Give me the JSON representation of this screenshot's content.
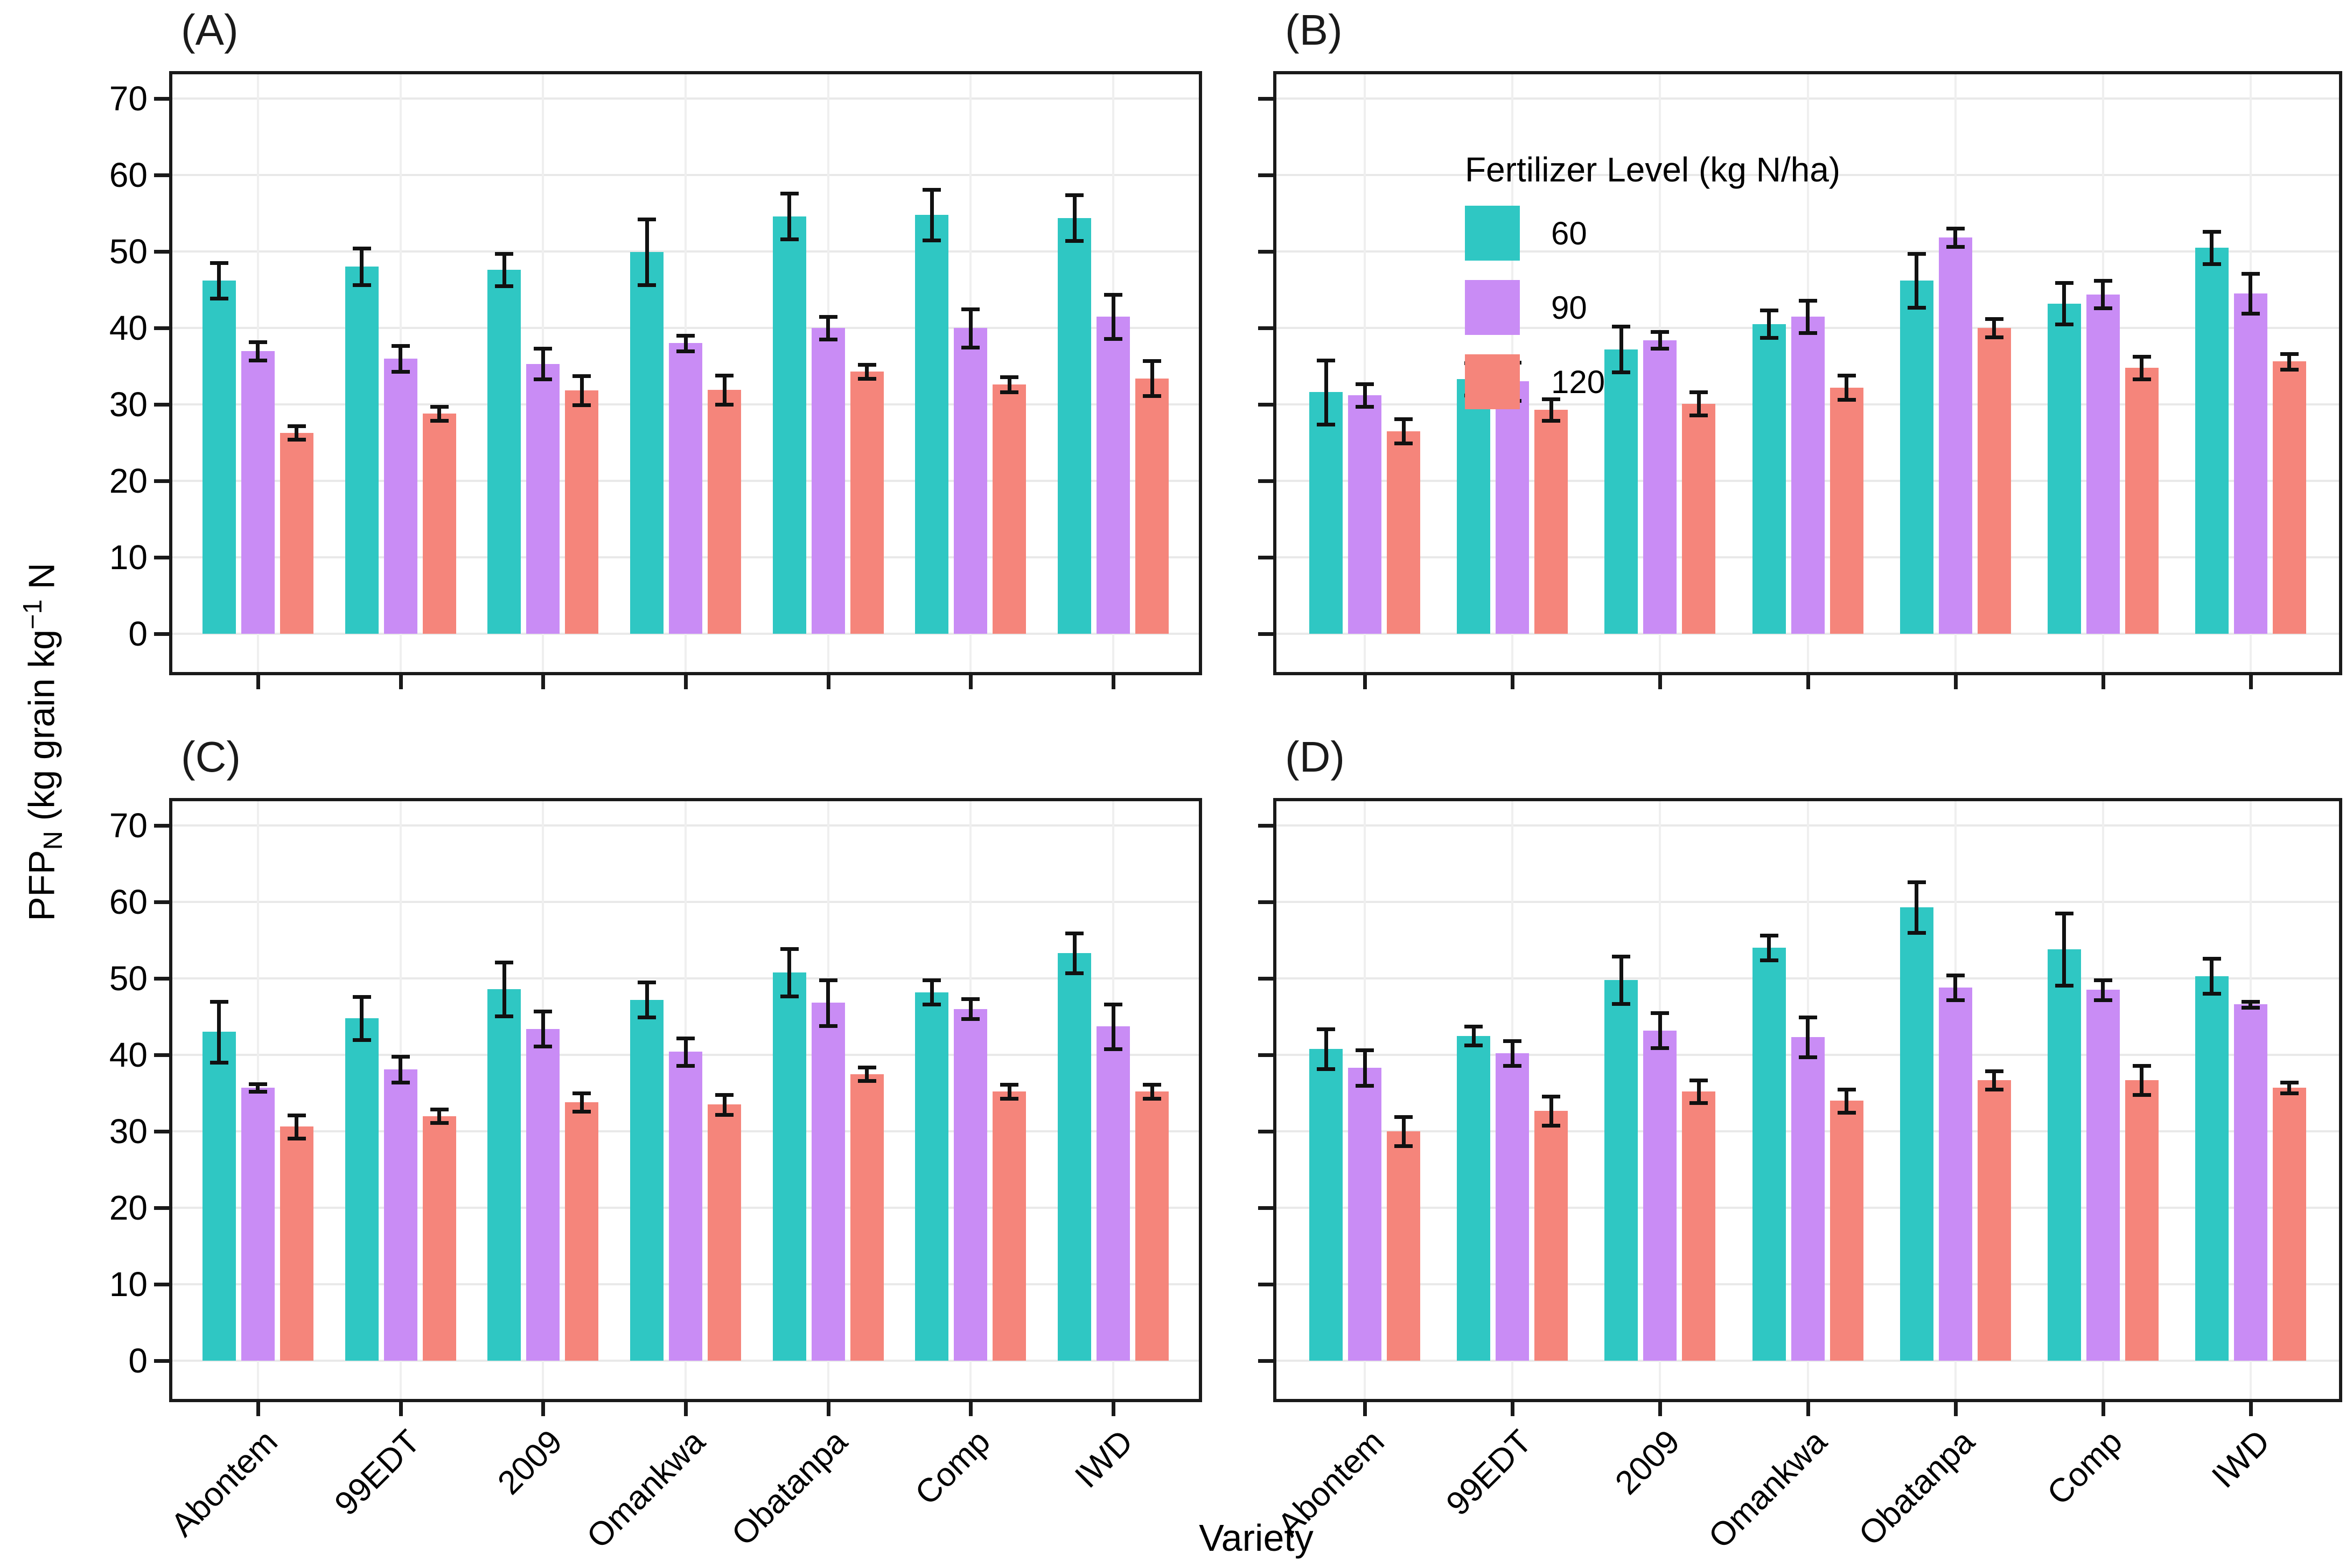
{
  "figure": {
    "xlabel": "Variety",
    "ylabel": {
      "prefix": "PFP",
      "sub": "N",
      "mid": " (kg grain kg",
      "sup": "−1",
      "suffix": " N"
    },
    "colors": {
      "level_60": "#2fc7c3",
      "level_90": "#c98cf5",
      "level_120": "#f5857b",
      "error_bar": "#111111",
      "panel_border": "#1a1a1a",
      "gridline": "#e9e9e9",
      "background": "#ffffff"
    }
  },
  "legend": {
    "title": "Fertilizer Level (kg N/ha)",
    "entries": [
      {
        "label": "60",
        "color": "#2fc7c3"
      },
      {
        "label": "90",
        "color": "#c98cf5"
      },
      {
        "label": "120",
        "color": "#f5857b"
      }
    ]
  },
  "chart_data": {
    "type": "bar",
    "categories": [
      "Abontem",
      "99EDT",
      "2009",
      "Omankwa",
      "Obatanpa",
      "Comp",
      "IWD"
    ],
    "series_names": [
      "60",
      "90",
      "120"
    ],
    "y_axis": {
      "ticks": [
        0,
        10,
        20,
        30,
        40,
        50,
        60,
        70
      ],
      "ylim": [
        -5,
        73.2
      ],
      "grid": true
    },
    "panels": [
      {
        "id": "A",
        "title": "(A)",
        "show_y_tick_labels": true,
        "show_x_tick_labels": false,
        "has_legend": false,
        "series": [
          {
            "name": "60",
            "values": [
              46.2,
              48.0,
              47.6,
              49.9,
              54.6,
              54.8,
              54.4
            ],
            "errors": [
              2.3,
              2.4,
              2.1,
              4.3,
              3.0,
              3.3,
              3.0
            ]
          },
          {
            "name": "90",
            "values": [
              37.0,
              36.0,
              35.3,
              38.0,
              40.0,
              40.0,
              41.5
            ],
            "errors": [
              1.2,
              1.7,
              2.0,
              1.0,
              1.5,
              2.5,
              2.9
            ]
          },
          {
            "name": "120",
            "values": [
              26.3,
              28.8,
              31.8,
              31.9,
              34.3,
              32.6,
              33.4
            ],
            "errors": [
              0.9,
              0.9,
              1.9,
              1.9,
              0.9,
              1.0,
              2.3
            ]
          }
        ]
      },
      {
        "id": "B",
        "title": "(B)",
        "show_y_tick_labels": false,
        "show_x_tick_labels": false,
        "has_legend": true,
        "series": [
          {
            "name": "60",
            "values": [
              31.6,
              33.3,
              37.2,
              40.5,
              46.2,
              43.2,
              50.5
            ],
            "errors": [
              4.2,
              2.1,
              3.0,
              1.8,
              3.5,
              2.7,
              2.1
            ]
          },
          {
            "name": "90",
            "values": [
              31.2,
              33.0,
              38.4,
              41.5,
              51.8,
              44.4,
              44.5
            ],
            "errors": [
              1.5,
              2.5,
              1.1,
              2.1,
              1.2,
              1.8,
              2.6
            ]
          },
          {
            "name": "120",
            "values": [
              26.5,
              29.3,
              30.1,
              32.2,
              40.0,
              34.8,
              35.6
            ],
            "errors": [
              1.6,
              1.4,
              1.5,
              1.6,
              1.2,
              1.5,
              1.0
            ]
          }
        ]
      },
      {
        "id": "C",
        "title": "(C)",
        "show_y_tick_labels": true,
        "show_x_tick_labels": true,
        "has_legend": false,
        "series": [
          {
            "name": "60",
            "values": [
              43.0,
              44.8,
              48.6,
              47.2,
              50.8,
              48.2,
              53.3
            ],
            "errors": [
              4.0,
              2.8,
              3.5,
              2.3,
              3.1,
              1.6,
              2.6
            ]
          },
          {
            "name": "90",
            "values": [
              35.7,
              38.1,
              43.4,
              40.4,
              46.8,
              46.0,
              43.7
            ],
            "errors": [
              0.5,
              1.7,
              2.3,
              1.8,
              3.0,
              1.3,
              2.9
            ]
          },
          {
            "name": "120",
            "values": [
              30.6,
              32.0,
              33.8,
              33.5,
              37.5,
              35.2,
              35.2
            ],
            "errors": [
              1.5,
              0.9,
              1.2,
              1.3,
              0.9,
              0.9,
              0.9
            ]
          }
        ]
      },
      {
        "id": "D",
        "title": "(D)",
        "show_y_tick_labels": false,
        "show_x_tick_labels": true,
        "has_legend": false,
        "series": [
          {
            "name": "60",
            "values": [
              40.8,
              42.5,
              49.8,
              54.0,
              59.3,
              53.8,
              50.3
            ],
            "errors": [
              2.6,
              1.2,
              3.1,
              1.6,
              3.3,
              4.7,
              2.3
            ]
          },
          {
            "name": "90",
            "values": [
              38.3,
              40.2,
              43.2,
              42.3,
              48.8,
              48.5,
              46.6
            ],
            "errors": [
              2.3,
              1.6,
              2.3,
              2.6,
              1.6,
              1.3,
              0.4
            ]
          },
          {
            "name": "120",
            "values": [
              30.0,
              32.7,
              35.2,
              34.0,
              36.7,
              36.7,
              35.7
            ],
            "errors": [
              1.9,
              1.9,
              1.5,
              1.5,
              1.2,
              1.9,
              0.7
            ]
          }
        ]
      }
    ]
  }
}
